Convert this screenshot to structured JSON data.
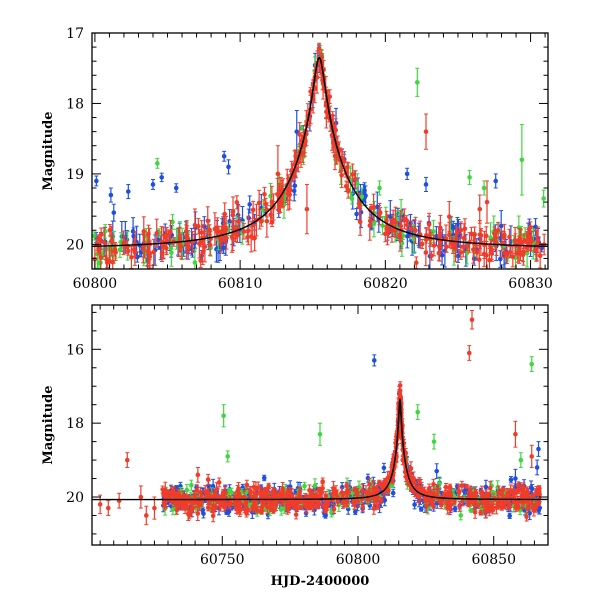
{
  "chart_data": [
    {
      "type": "scatter",
      "panel": "top",
      "xlabel": "",
      "ylabel": "Magnitude",
      "xlim": [
        60799.8,
        60831.2
      ],
      "ylim": [
        20.35,
        17.0
      ],
      "y_inverted": true,
      "xticks": [
        60800,
        60810,
        60820,
        60830
      ],
      "yticks": [
        17,
        18,
        19,
        20
      ],
      "colors": {
        "blue": "#1f4fe0",
        "green": "#3ed83e",
        "red": "#f03c2a"
      },
      "model": {
        "t0": 60815.45,
        "base": 20.07,
        "peak": 17.35,
        "width": 0.35
      },
      "series": [
        {
          "color": "blue",
          "outliers": [
            [
              60800.1,
              19.1,
              0.07
            ],
            [
              60801.1,
              19.3,
              0.1
            ],
            [
              60801.3,
              19.55,
              0.12
            ],
            [
              60802.3,
              19.25,
              0.1
            ],
            [
              60804.0,
              19.15,
              0.07
            ],
            [
              60804.6,
              19.05,
              0.06
            ],
            [
              60805.6,
              19.2,
              0.06
            ],
            [
              60808.9,
              18.75,
              0.07
            ],
            [
              60809.2,
              18.9,
              0.1
            ],
            [
              60813.8,
              18.95,
              0.08
            ],
            [
              60813.9,
              18.4,
              0.3
            ],
            [
              60821.5,
              19.0,
              0.08
            ],
            [
              60822.8,
              19.15,
              0.1
            ],
            [
              60827.6,
              19.1,
              0.1
            ]
          ]
        },
        {
          "color": "green",
          "outliers": [
            [
              60804.3,
              18.85,
              0.07
            ],
            [
              60814.2,
              18.35,
              0.03
            ],
            [
              60819.6,
              19.2,
              0.1
            ],
            [
              60822.2,
              17.7,
              0.2
            ],
            [
              60825.8,
              19.05,
              0.1
            ],
            [
              60826.8,
              19.2,
              0.1
            ],
            [
              60829.4,
              18.8,
              0.5
            ],
            [
              60830.9,
              19.35,
              0.12
            ]
          ]
        },
        {
          "color": "red",
          "outliers": [
            [
              60812.6,
              19.0,
              0.4
            ],
            [
              60812.8,
              19.25,
              0.2
            ],
            [
              60814.6,
              19.5,
              0.35
            ],
            [
              60822.8,
              18.4,
              0.25
            ],
            [
              60826.5,
              19.5,
              0.2
            ],
            [
              60827.0,
              19.4,
              0.3
            ]
          ]
        }
      ]
    },
    {
      "type": "scatter",
      "panel": "bottom",
      "xlabel": "HJD-2400000",
      "ylabel": "Magnitude",
      "xlim": [
        60702,
        60870
      ],
      "ylim": [
        21.3,
        14.8
      ],
      "y_inverted": true,
      "xticks": [
        60750,
        60800,
        60850
      ],
      "yticks": [
        16,
        18,
        20
      ],
      "colors": {
        "blue": "#1f4fe0",
        "green": "#3ed83e",
        "red": "#f03c2a"
      },
      "model": {
        "t0": 60815.45,
        "base": 20.07,
        "peak": 17.35,
        "width": 0.35
      },
      "series": [
        {
          "color": "blue",
          "outliers": [
            [
              60806,
              16.3,
              0.15
            ],
            [
              60815.2,
              17.2,
              0.2
            ],
            [
              60818,
              19.2,
              0.3
            ],
            [
              60829,
              19.3,
              0.2
            ],
            [
              60858,
              19.5,
              0.25
            ],
            [
              60866,
              19.2,
              0.2
            ],
            [
              60866.5,
              18.7,
              0.2
            ]
          ]
        },
        {
          "color": "green",
          "outliers": [
            [
              60750.5,
              17.8,
              0.3
            ],
            [
              60752,
              18.9,
              0.15
            ],
            [
              60786,
              18.3,
              0.3
            ],
            [
              60822,
              17.7,
              0.2
            ],
            [
              60828,
              18.5,
              0.2
            ],
            [
              60860,
              19.0,
              0.2
            ],
            [
              60864,
              16.4,
              0.2
            ]
          ]
        },
        {
          "color": "red",
          "outliers": [
            [
              60715,
              19.0,
              0.2
            ],
            [
              60729,
              19.8,
              0.2
            ],
            [
              60741,
              19.4,
              0.2
            ],
            [
              60842,
              15.2,
              0.25
            ],
            [
              60841,
              16.1,
              0.2
            ],
            [
              60858,
              18.3,
              0.35
            ],
            [
              60864,
              18.9,
              0.3
            ]
          ]
        }
      ]
    }
  ]
}
